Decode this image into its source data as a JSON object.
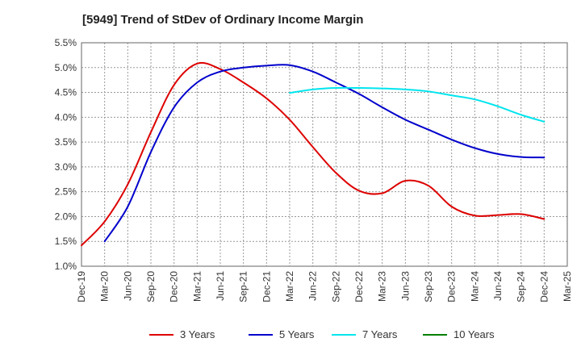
{
  "chart_data": {
    "type": "line",
    "title": "[5949]  Trend of StDev of Ordinary Income Margin",
    "xlabel": "",
    "ylabel": "",
    "ylim": [
      1.0,
      5.5
    ],
    "y_ticks": [
      "1.0%",
      "1.5%",
      "2.0%",
      "2.5%",
      "3.0%",
      "3.5%",
      "4.0%",
      "4.5%",
      "5.0%",
      "5.5%"
    ],
    "x_ticks": [
      "Dec-19",
      "Mar-20",
      "Jun-20",
      "Sep-20",
      "Dec-20",
      "Mar-21",
      "Jun-21",
      "Sep-21",
      "Dec-21",
      "Mar-22",
      "Jun-22",
      "Sep-22",
      "Dec-22",
      "Mar-23",
      "Jun-23",
      "Sep-23",
      "Dec-23",
      "Mar-24",
      "Jun-24",
      "Sep-24",
      "Dec-24",
      "Mar-25"
    ],
    "grid": true,
    "legend_position": "bottom",
    "series": [
      {
        "name": "3 Years",
        "color": "#dd0000",
        "values": [
          1.42,
          1.9,
          2.65,
          3.7,
          4.65,
          5.08,
          4.97,
          4.7,
          4.38,
          3.95,
          3.4,
          2.88,
          2.52,
          2.47,
          2.72,
          2.62,
          2.2,
          2.02,
          2.03,
          2.05,
          1.95,
          null
        ]
      },
      {
        "name": "5 Years",
        "color": "#0000cc",
        "values": [
          null,
          1.5,
          2.2,
          3.3,
          4.2,
          4.7,
          4.92,
          5.0,
          5.04,
          5.05,
          4.92,
          4.7,
          4.47,
          4.2,
          3.95,
          3.75,
          3.55,
          3.38,
          3.26,
          3.2,
          3.19,
          null
        ]
      },
      {
        "name": "7 Years",
        "color": "#00e5ee",
        "values": [
          null,
          null,
          null,
          null,
          null,
          null,
          null,
          null,
          null,
          4.49,
          4.56,
          4.59,
          4.59,
          4.58,
          4.56,
          4.52,
          4.44,
          4.36,
          4.22,
          4.05,
          3.91,
          null
        ]
      },
      {
        "name": "10 Years",
        "color": "#008000",
        "values": []
      }
    ]
  }
}
